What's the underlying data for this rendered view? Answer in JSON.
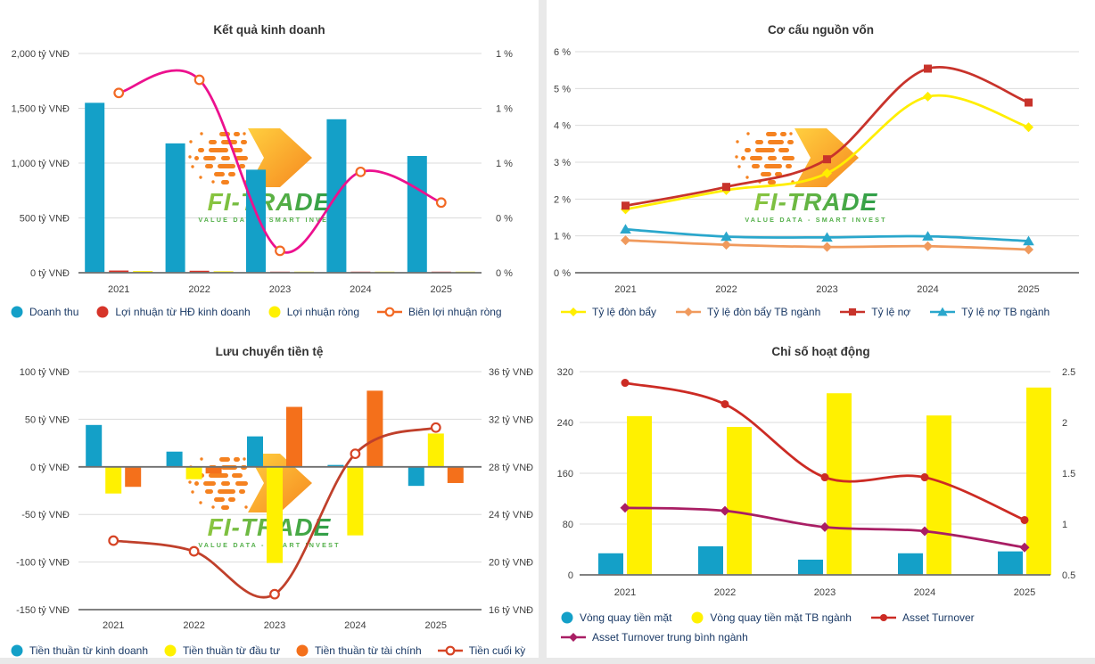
{
  "watermark": {
    "brand": "FI-TRADE",
    "tagline": "VALUE DATA - SMART INVEST"
  },
  "colors": {
    "bar_blue": "#14A0C8",
    "bar_yellow": "#FFF100",
    "bar_orange": "#F4701B",
    "bar_red": "#D63429",
    "line_pink": "#EC118E",
    "line_brick": "#C0402B",
    "line_red": "#C8332B",
    "line_teal": "#2AA7CC",
    "line_light_orange": "#F09A5D",
    "line_purple": "#A91E64",
    "marker_orange": "#F26924"
  },
  "chart_data": [
    {
      "id": "ket-qua-kinh-doanh",
      "type": "bar+line",
      "title": "Kết quả kinh doanh",
      "grid": "on",
      "legend_position": "bottom",
      "categories": [
        "2021",
        "2022",
        "2023",
        "2024",
        "2025"
      ],
      "left_axis": {
        "min": 0,
        "max": 2000,
        "unit": "tỷ VNĐ",
        "ticks": [
          "2,000 tỷ VNĐ",
          "1,500 tỷ VNĐ",
          "1,000 tỷ VNĐ",
          "500 tỷ VNĐ",
          "0 tỷ VNĐ"
        ]
      },
      "right_axis": {
        "min": 0,
        "max": 1,
        "unit": "%",
        "ticks": [
          "1 %",
          "1 %",
          "1 %",
          "0 %",
          "0 %"
        ]
      },
      "series": [
        {
          "name": "Doanh thu",
          "type": "bar",
          "axis": "left",
          "color": "#14A0C8",
          "values": [
            1550,
            1180,
            940,
            1400,
            1065
          ]
        },
        {
          "name": "Lợi nhuận từ HĐ kinh doanh",
          "type": "bar",
          "axis": "left",
          "color": "#D63429",
          "values": [
            20,
            18,
            4,
            4,
            4
          ]
        },
        {
          "name": "Lợi nhuận ròng",
          "type": "bar",
          "axis": "left",
          "color": "#FFF100",
          "values": [
            15,
            13,
            3,
            3,
            3
          ]
        },
        {
          "name": "Biên lợi nhuận ròng",
          "type": "line",
          "axis": "right",
          "color": "#EC118E",
          "marker": "hollow-circle",
          "marker_color": "#F26924",
          "values": [
            0.82,
            0.88,
            0.1,
            0.46,
            0.32
          ]
        }
      ]
    },
    {
      "id": "co-cau-nguon-von",
      "type": "line",
      "title": "Cơ cấu nguồn vốn",
      "grid": "on",
      "legend_position": "bottom",
      "categories": [
        "2021",
        "2022",
        "2023",
        "2024",
        "2025"
      ],
      "left_axis": {
        "min": 0,
        "max": 6,
        "unit": "%",
        "ticks": [
          "6 %",
          "5 %",
          "4 %",
          "3 %",
          "2 %",
          "1 %",
          "0 %"
        ]
      },
      "series": [
        {
          "name": "Tỷ lệ đòn bẩy",
          "type": "line",
          "axis": "left",
          "color": "#FFEE00",
          "marker": "diamond",
          "values": [
            1.72,
            2.24,
            2.7,
            4.78,
            3.95
          ]
        },
        {
          "name": "Tỷ lệ đòn bẩy TB ngành",
          "type": "line",
          "axis": "left",
          "color": "#F09A5D",
          "marker": "diamond",
          "values": [
            0.88,
            0.76,
            0.7,
            0.72,
            0.63
          ]
        },
        {
          "name": "Tỷ lệ nợ",
          "type": "line",
          "axis": "left",
          "color": "#C8332B",
          "marker": "square",
          "values": [
            1.82,
            2.33,
            3.08,
            5.54,
            4.62
          ]
        },
        {
          "name": "Tỷ lệ nợ TB ngành",
          "type": "line",
          "axis": "left",
          "color": "#2AA7CC",
          "marker": "triangle",
          "values": [
            1.18,
            0.98,
            0.96,
            0.99,
            0.86
          ]
        }
      ]
    },
    {
      "id": "luu-chuyen-tien-te",
      "type": "bar+line",
      "title": "Lưu chuyển tiền tệ",
      "grid": "on",
      "legend_position": "bottom",
      "categories": [
        "2021",
        "2022",
        "2023",
        "2024",
        "2025"
      ],
      "left_axis": {
        "min": -150,
        "max": 100,
        "unit": "tỷ VNĐ",
        "ticks": [
          "100 tỷ VNĐ",
          "50 tỷ VNĐ",
          "0 tỷ VNĐ",
          "-50 tỷ VNĐ",
          "-100 tỷ VNĐ",
          "-150 tỷ VNĐ"
        ]
      },
      "right_axis": {
        "min": 16,
        "max": 36,
        "unit": "tỷ VNĐ",
        "ticks": [
          "36 tỷ VNĐ",
          "32 tỷ VNĐ",
          "28 tỷ VNĐ",
          "24 tỷ VNĐ",
          "20 tỷ VNĐ",
          "16 tỷ VNĐ"
        ]
      },
      "series": [
        {
          "name": "Tiền thuần từ kinh doanh",
          "type": "bar",
          "axis": "left",
          "color": "#14A0C8",
          "values": [
            44,
            16,
            32,
            2,
            -20
          ]
        },
        {
          "name": "Tiền thuần từ đầu tư",
          "type": "bar",
          "axis": "left",
          "color": "#FFF100",
          "values": [
            -28,
            -13,
            -101,
            -72,
            35
          ]
        },
        {
          "name": "Tiền thuần từ tài chính",
          "type": "bar",
          "axis": "left",
          "color": "#F4701B",
          "values": [
            -21,
            -7,
            63,
            80,
            -17
          ]
        },
        {
          "name": "Tiền cuối kỳ",
          "type": "line",
          "axis": "right",
          "color": "#C0402B",
          "marker": "hollow-circle",
          "marker_color": "#D64425",
          "values": [
            21.8,
            20.9,
            17.3,
            29.1,
            31.3
          ]
        }
      ]
    },
    {
      "id": "chi-so-hoat-dong",
      "type": "bar+line",
      "title": "Chỉ số hoạt động",
      "grid": "on",
      "legend_position": "bottom",
      "categories": [
        "2021",
        "2022",
        "2023",
        "2024",
        "2025"
      ],
      "left_axis": {
        "min": 0,
        "max": 320,
        "unit": "",
        "ticks": [
          "320",
          "240",
          "160",
          "80",
          "0"
        ]
      },
      "right_axis": {
        "min": 0.5,
        "max": 2.5,
        "unit": "",
        "ticks": [
          "2.5",
          "2",
          "1.5",
          "1",
          "0.5"
        ]
      },
      "series": [
        {
          "name": "Vòng quay tiền mặt",
          "type": "bar",
          "axis": "left",
          "color": "#14A0C8",
          "values": [
            34,
            45,
            24,
            34,
            37
          ]
        },
        {
          "name": "Vòng quay tiền mặt TB ngành",
          "type": "bar",
          "axis": "left",
          "color": "#FFF100",
          "values": [
            250,
            233,
            286,
            251,
            295
          ]
        },
        {
          "name": "Asset Turnover",
          "type": "line",
          "axis": "right",
          "color": "#CC2B24",
          "marker": "circle",
          "values": [
            2.39,
            2.18,
            1.46,
            1.46,
            1.04
          ]
        },
        {
          "name": "Asset Turnover trung bình ngành",
          "type": "line",
          "axis": "right",
          "color": "#A91E64",
          "marker": "diamond",
          "values": [
            1.16,
            1.13,
            0.97,
            0.93,
            0.77
          ]
        }
      ]
    }
  ]
}
